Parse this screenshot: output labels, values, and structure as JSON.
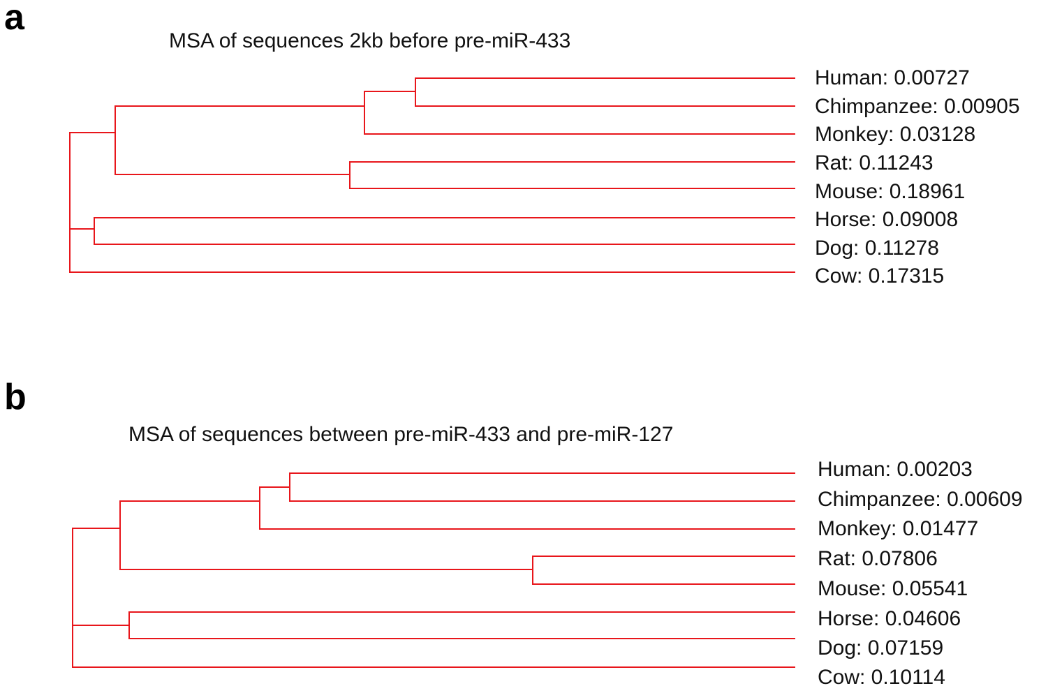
{
  "figure": {
    "branch_color": "#e8161b",
    "panels": [
      {
        "id": "a",
        "letter": "a",
        "title": "MSA of sequences 2kb before pre-miR-433",
        "leaves": [
          {
            "name": "Human",
            "value": "0.00727",
            "label": "Human: 0.00727"
          },
          {
            "name": "Chimpanzee",
            "value": "0.00905",
            "label": "Chimpanzee: 0.00905"
          },
          {
            "name": "Monkey",
            "value": "0.03128",
            "label": "Monkey: 0.03128"
          },
          {
            "name": "Rat",
            "value": "0.11243",
            "label": "Rat: 0.11243"
          },
          {
            "name": "Mouse",
            "value": "0.18961",
            "label": "Mouse: 0.18961"
          },
          {
            "name": "Horse",
            "value": "0.09008",
            "label": "Horse: 0.09008"
          },
          {
            "name": "Dog",
            "value": "0.11278",
            "label": "Dog: 0.11278"
          },
          {
            "name": "Cow",
            "value": "0.17315",
            "label": "Cow: 0.17315"
          }
        ]
      },
      {
        "id": "b",
        "letter": "b",
        "title": "MSA of sequences between pre-miR-433 and pre-miR-127",
        "leaves": [
          {
            "name": "Human",
            "value": "0.00203",
            "label": "Human: 0.00203"
          },
          {
            "name": "Chimpanzee",
            "value": "0.00609",
            "label": "Chimpanzee: 0.00609"
          },
          {
            "name": "Monkey",
            "value": "0.01477",
            "label": "Monkey: 0.01477"
          },
          {
            "name": "Rat",
            "value": "0.07806",
            "label": "Rat: 0.07806"
          },
          {
            "name": "Mouse",
            "value": "0.05541",
            "label": "Mouse: 0.05541"
          },
          {
            "name": "Horse",
            "value": "0.04606",
            "label": "Horse: 0.04606"
          },
          {
            "name": "Dog",
            "value": "0.07159",
            "label": "Dog: 0.07159"
          },
          {
            "name": "Cow",
            "value": "0.10114",
            "label": "Cow: 0.10114"
          }
        ]
      }
    ]
  }
}
